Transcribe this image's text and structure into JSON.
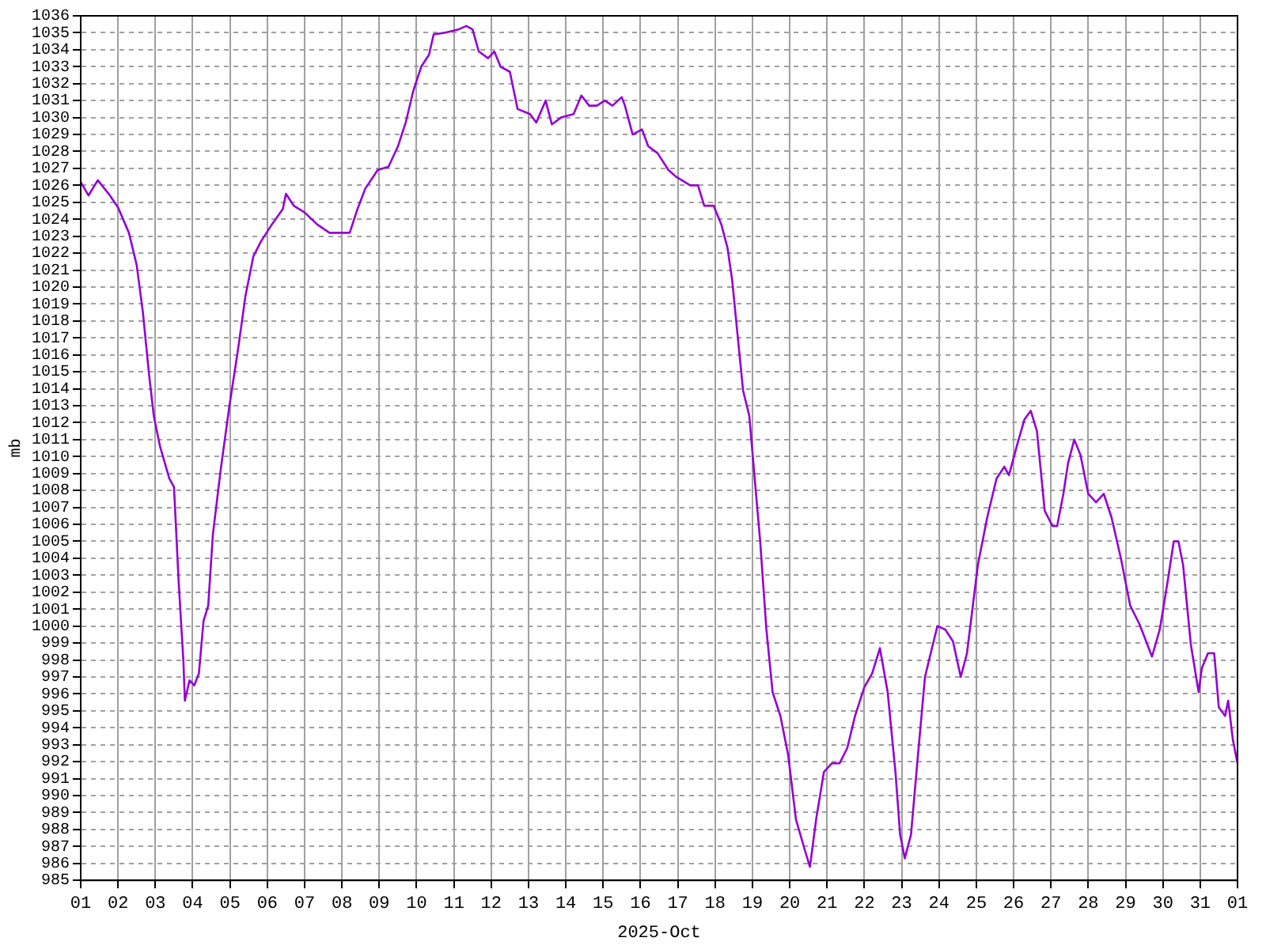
{
  "chart_data": {
    "type": "line",
    "xlabel": "2025-Oct",
    "ylabel": "mb",
    "grid": true,
    "legend": false,
    "marker": "none",
    "line_style": "solid",
    "xlim": [
      "2025-10-01",
      "2025-11-01"
    ],
    "ylim": [
      985,
      1036
    ],
    "xticks": [
      {
        "value": "2025-10-01",
        "label": "01"
      },
      {
        "value": "2025-10-02",
        "label": "02"
      },
      {
        "value": "2025-10-03",
        "label": "03"
      },
      {
        "value": "2025-10-04",
        "label": "04"
      },
      {
        "value": "2025-10-05",
        "label": "05"
      },
      {
        "value": "2025-10-06",
        "label": "06"
      },
      {
        "value": "2025-10-07",
        "label": "07"
      },
      {
        "value": "2025-10-08",
        "label": "08"
      },
      {
        "value": "2025-10-09",
        "label": "09"
      },
      {
        "value": "2025-10-10",
        "label": "10"
      },
      {
        "value": "2025-10-11",
        "label": "11"
      },
      {
        "value": "2025-10-12",
        "label": "12"
      },
      {
        "value": "2025-10-13",
        "label": "13"
      },
      {
        "value": "2025-10-14",
        "label": "14"
      },
      {
        "value": "2025-10-15",
        "label": "15"
      },
      {
        "value": "2025-10-16",
        "label": "16"
      },
      {
        "value": "2025-10-17",
        "label": "17"
      },
      {
        "value": "2025-10-18",
        "label": "18"
      },
      {
        "value": "2025-10-19",
        "label": "19"
      },
      {
        "value": "2025-10-20",
        "label": "20"
      },
      {
        "value": "2025-10-21",
        "label": "21"
      },
      {
        "value": "2025-10-22",
        "label": "22"
      },
      {
        "value": "2025-10-23",
        "label": "23"
      },
      {
        "value": "2025-10-24",
        "label": "24"
      },
      {
        "value": "2025-10-25",
        "label": "25"
      },
      {
        "value": "2025-10-26",
        "label": "26"
      },
      {
        "value": "2025-10-27",
        "label": "27"
      },
      {
        "value": "2025-10-28",
        "label": "28"
      },
      {
        "value": "2025-10-29",
        "label": "29"
      },
      {
        "value": "2025-10-30",
        "label": "30"
      },
      {
        "value": "2025-10-31",
        "label": "31"
      },
      {
        "value": "2025-11-01",
        "label": "01"
      }
    ],
    "yticks": [
      985,
      986,
      987,
      988,
      989,
      990,
      991,
      992,
      993,
      994,
      995,
      996,
      997,
      998,
      999,
      1000,
      1001,
      1002,
      1003,
      1004,
      1005,
      1006,
      1007,
      1008,
      1009,
      1010,
      1011,
      1012,
      1013,
      1014,
      1015,
      1016,
      1017,
      1018,
      1019,
      1020,
      1021,
      1022,
      1023,
      1024,
      1025,
      1026,
      1027,
      1028,
      1029,
      1030,
      1031,
      1032,
      1033,
      1034,
      1035,
      1036
    ],
    "series": [
      {
        "color": "#9400d3",
        "x": [
          "2025-10-01T00:00",
          "2025-10-01T05:00",
          "2025-10-01T11:00",
          "2025-10-01T18:00",
          "2025-10-02T00:00",
          "2025-10-02T07:00",
          "2025-10-02T12:00",
          "2025-10-02T16:00",
          "2025-10-02T20:00",
          "2025-10-02T23:00",
          "2025-10-03T03:00",
          "2025-10-03T09:00",
          "2025-10-03T12:00",
          "2025-10-03T15:00",
          "2025-10-03T18:00",
          "2025-10-03T19:00",
          "2025-10-03T22:00",
          "2025-10-04T01:00",
          "2025-10-04T04:00",
          "2025-10-04T07:00",
          "2025-10-04T10:00",
          "2025-10-04T13:00",
          "2025-10-04T18:00",
          "2025-10-04T23:30",
          "2025-10-05T05:00",
          "2025-10-05T10:00",
          "2025-10-05T15:00",
          "2025-10-05T20:00",
          "2025-10-06T03:00",
          "2025-10-06T10:00",
          "2025-10-06T12:00",
          "2025-10-06T17:00",
          "2025-10-07T00:00",
          "2025-10-07T08:00",
          "2025-10-07T16:00",
          "2025-10-07T23:30",
          "2025-10-08T05:00",
          "2025-10-08T10:00",
          "2025-10-08T15:00",
          "2025-10-08T23:00",
          "2025-10-09T06:00",
          "2025-10-09T12:00",
          "2025-10-09T17:00",
          "2025-10-09T22:00",
          "2025-10-10T03:00",
          "2025-10-10T08:00",
          "2025-10-10T11:00",
          "2025-10-10T18:00",
          "2025-10-11T03:00",
          "2025-10-11T08:00",
          "2025-10-11T12:00",
          "2025-10-11T16:00",
          "2025-10-11T22:00",
          "2025-10-12T02:00",
          "2025-10-12T06:00",
          "2025-10-12T12:00",
          "2025-10-12T17:00",
          "2025-10-13T01:00",
          "2025-10-13T05:00",
          "2025-10-13T11:00",
          "2025-10-13T15:00",
          "2025-10-13T21:00",
          "2025-10-14T05:00",
          "2025-10-14T10:00",
          "2025-10-14T15:00",
          "2025-10-14T20:00",
          "2025-10-15T01:00",
          "2025-10-15T06:00",
          "2025-10-15T12:00",
          "2025-10-15T14:00",
          "2025-10-15T19:00",
          "2025-10-16T01:00",
          "2025-10-16T05:00",
          "2025-10-16T11:00",
          "2025-10-16T18:00",
          "2025-10-16T23:00",
          "2025-10-17T08:00",
          "2025-10-17T13:00",
          "2025-10-17T17:00",
          "2025-10-17T23:00",
          "2025-10-18T04:00",
          "2025-10-18T08:00",
          "2025-10-18T11:00",
          "2025-10-18T14:00",
          "2025-10-18T18:00",
          "2025-10-18T22:00",
          "2025-10-19T01:00",
          "2025-10-19T05:00",
          "2025-10-19T09:00",
          "2025-10-19T13:00",
          "2025-10-19T18:00",
          "2025-10-19T23:00",
          "2025-10-20T04:00",
          "2025-10-20T10:00",
          "2025-10-20T13:00",
          "2025-10-20T17:00",
          "2025-10-20T22:00",
          "2025-10-21T03:00",
          "2025-10-21T08:00",
          "2025-10-21T13:00",
          "2025-10-21T18:00",
          "2025-10-22T00:00",
          "2025-10-22T05:00",
          "2025-10-22T10:00",
          "2025-10-22T15:00",
          "2025-10-22T20:00",
          "2025-10-22T23:00",
          "2025-10-23T02:00",
          "2025-10-23T06:00",
          "2025-10-23T10:00",
          "2025-10-23T15:00",
          "2025-10-23T20:00",
          "2025-10-23T23:00",
          "2025-10-24T04:00",
          "2025-10-24T09:00",
          "2025-10-24T14:00",
          "2025-10-24T18:00",
          "2025-10-25T01:00",
          "2025-10-25T07:00",
          "2025-10-25T13:00",
          "2025-10-25T18:00",
          "2025-10-25T21:00",
          "2025-10-26T02:00",
          "2025-10-26T07:00",
          "2025-10-26T11:00",
          "2025-10-26T15:00",
          "2025-10-26T20:00",
          "2025-10-27T01:00",
          "2025-10-27T04:00",
          "2025-10-27T08:00",
          "2025-10-27T11:00",
          "2025-10-27T15:00",
          "2025-10-27T19:00",
          "2025-10-28T00:00",
          "2025-10-28T05:00",
          "2025-10-28T10:00",
          "2025-10-28T15:00",
          "2025-10-28T21:00",
          "2025-10-29T03:00",
          "2025-10-29T09:00",
          "2025-10-29T17:00",
          "2025-10-29T22:00",
          "2025-10-30T03:00",
          "2025-10-30T07:00",
          "2025-10-30T10:00",
          "2025-10-30T13:00",
          "2025-10-30T18:00",
          "2025-10-30T23:00",
          "2025-10-31T01:00",
          "2025-10-31T05:00",
          "2025-10-31T09:00",
          "2025-10-31T12:00",
          "2025-10-31T16:00",
          "2025-10-31T18:00",
          "2025-10-31T21:00",
          "2025-11-01T00:00"
        ],
        "values": [
          1026.2,
          1025.4,
          1026.3,
          1025.5,
          1024.7,
          1023.2,
          1021.3,
          1018.5,
          1014.8,
          1012.4,
          1010.6,
          1008.7,
          1008.2,
          1002.6,
          998.0,
          995.6,
          996.8,
          996.5,
          997.2,
          1000.3,
          1001.2,
          1005.4,
          1009.2,
          1012.9,
          1016.2,
          1019.5,
          1021.8,
          1022.7,
          1023.7,
          1024.6,
          1025.5,
          1024.8,
          1024.4,
          1023.7,
          1023.2,
          1023.2,
          1023.2,
          1024.6,
          1025.8,
          1026.9,
          1027.1,
          1028.3,
          1029.7,
          1031.6,
          1033.0,
          1033.7,
          1034.9,
          1035.0,
          1035.2,
          1035.4,
          1035.2,
          1033.9,
          1033.5,
          1033.9,
          1033.0,
          1032.7,
          1030.5,
          1030.2,
          1029.7,
          1031.0,
          1029.6,
          1030.0,
          1030.2,
          1031.3,
          1030.7,
          1030.7,
          1031.0,
          1030.7,
          1031.2,
          1030.7,
          1029.0,
          1029.3,
          1028.3,
          1027.9,
          1026.9,
          1026.5,
          1026.0,
          1026.0,
          1024.8,
          1024.8,
          1023.7,
          1022.3,
          1020.4,
          1017.6,
          1013.9,
          1012.4,
          1009.2,
          1005.0,
          999.8,
          996.1,
          994.7,
          992.4,
          988.6,
          986.7,
          985.8,
          988.6,
          991.4,
          991.9,
          991.9,
          992.8,
          994.7,
          996.4,
          997.2,
          998.7,
          996.1,
          991.4,
          987.7,
          986.3,
          987.7,
          991.9,
          997.0,
          998.9,
          1000.0,
          999.8,
          999.1,
          997.0,
          998.4,
          1003.6,
          1006.4,
          1008.7,
          1009.4,
          1008.9,
          1010.6,
          1012.2,
          1012.7,
          1011.5,
          1006.8,
          1005.9,
          1005.9,
          1007.8,
          1009.6,
          1011.0,
          1010.1,
          1007.8,
          1007.3,
          1007.8,
          1006.4,
          1004.0,
          1001.2,
          1000.1,
          998.2,
          999.8,
          1002.6,
          1005.0,
          1005.0,
          1003.6,
          998.9,
          996.1,
          997.5,
          998.4,
          998.4,
          995.2,
          994.7,
          995.6,
          993.3,
          991.9
        ]
      }
    ]
  }
}
